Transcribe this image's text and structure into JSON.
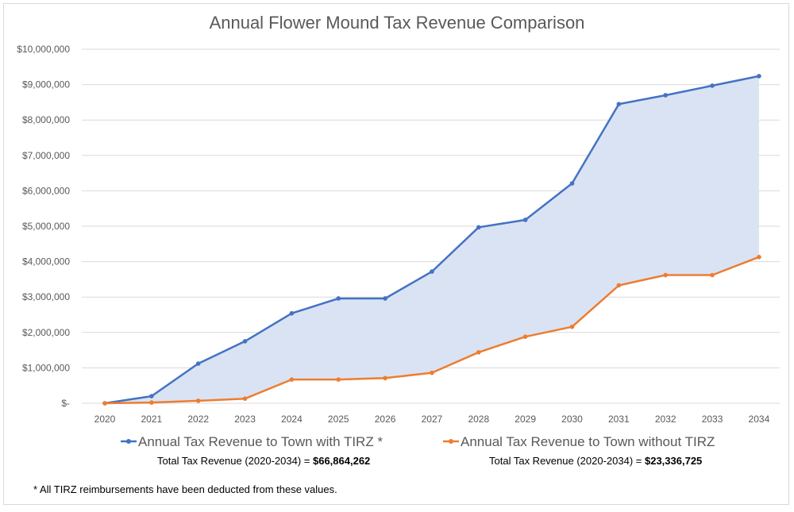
{
  "chart_data": {
    "type": "line",
    "title": "Annual Flower Mound Tax Revenue Comparison",
    "x": [
      "2020",
      "2021",
      "2022",
      "2023",
      "2024",
      "2025",
      "2026",
      "2027",
      "2028",
      "2029",
      "2030",
      "2031",
      "2032",
      "2033",
      "2034"
    ],
    "y_ticks": [
      "$-",
      "$1,000,000",
      "$2,000,000",
      "$3,000,000",
      "$4,000,000",
      "$5,000,000",
      "$6,000,000",
      "$7,000,000",
      "$8,000,000",
      "$9,000,000",
      "$10,000,000"
    ],
    "ylim": [
      0,
      10000000
    ],
    "grid": true,
    "legend_position": "bottom",
    "fill_between_series": true,
    "colors": {
      "with_tirz": "#4472c4",
      "without_tirz": "#ed7d31",
      "fill": "#dae3f3",
      "grid": "#d9d9d9"
    },
    "series": [
      {
        "name": "Annual Tax Revenue to Town with TIRZ *",
        "values": [
          0,
          200000,
          1120000,
          1750000,
          2540000,
          2960000,
          2960000,
          3720000,
          4970000,
          5180000,
          6210000,
          8450000,
          8700000,
          8970000,
          9240000
        ]
      },
      {
        "name": "Annual Tax Revenue to Town without TIRZ",
        "values": [
          0,
          20000,
          70000,
          130000,
          670000,
          670000,
          710000,
          860000,
          1440000,
          1880000,
          2160000,
          3330000,
          3620000,
          3620000,
          4130000
        ]
      }
    ]
  },
  "totals": {
    "with_tirz_label": "Total Tax Revenue (2020-2034) = ",
    "with_tirz_value": "$66,864,262",
    "without_tirz_label": "Total Tax Revenue (2020-2034) = ",
    "without_tirz_value": "$23,336,725"
  },
  "footnote": "* All TIRZ reimbursements have been deducted from these values."
}
